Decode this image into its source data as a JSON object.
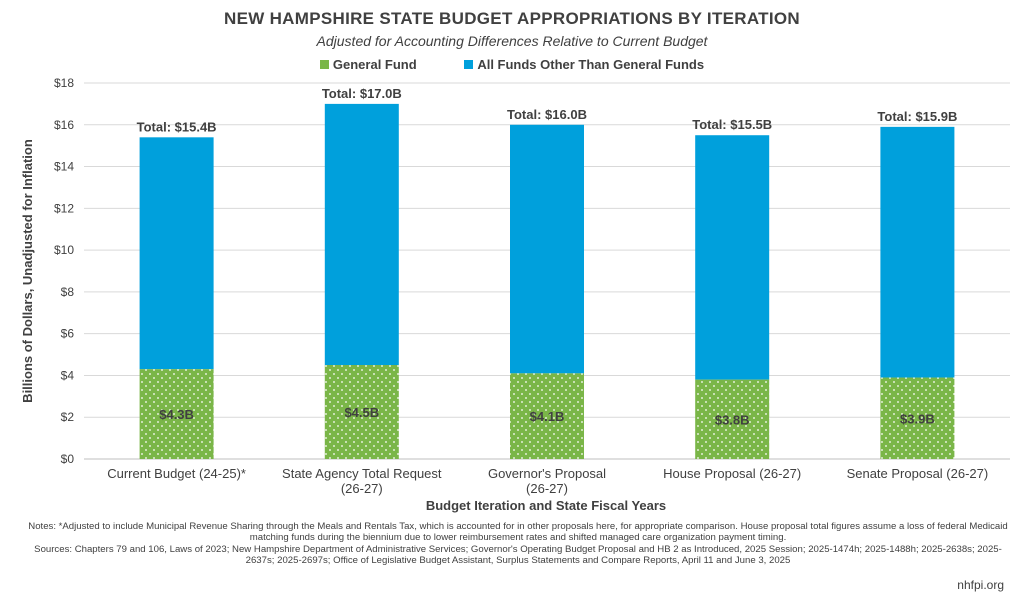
{
  "title": "NEW HAMPSHIRE STATE BUDGET APPROPRIATIONS BY ITERATION",
  "subtitle": "Adjusted for Accounting Differences Relative to Current Budget",
  "colors": {
    "general_fund": "#7ab648",
    "other_funds": "#00a0dc",
    "dots": "#ffffff",
    "grid": "#d9d9d9"
  },
  "chart_data": {
    "type": "bar",
    "stacked": true,
    "title": "NEW HAMPSHIRE STATE BUDGET APPROPRIATIONS BY ITERATION",
    "subtitle": "Adjusted for Accounting Differences Relative to Current Budget",
    "xlabel": "Budget Iteration and State Fiscal Years",
    "ylabel": "Billions of Dollars, Unadjusted for Inflation",
    "ylim": [
      0,
      18
    ],
    "yticks": [
      "$0",
      "$2",
      "$4",
      "$6",
      "$8",
      "$10",
      "$12",
      "$14",
      "$16",
      "$18"
    ],
    "grid": true,
    "legend_position": "top",
    "categories": [
      [
        "Current Budget (24-25)*"
      ],
      [
        "State Agency Total Request",
        "(26-27)"
      ],
      [
        "Governor's Proposal",
        "(26-27)"
      ],
      [
        "House Proposal (26-27)"
      ],
      [
        "Senate Proposal (26-27)"
      ]
    ],
    "series": [
      {
        "name": "General Fund",
        "values": [
          4.3,
          4.5,
          4.1,
          3.8,
          3.9
        ],
        "labels": [
          "$4.3B",
          "$4.5B",
          "$4.1B",
          "$3.8B",
          "$3.9B"
        ]
      },
      {
        "name": "All Funds Other Than General Funds",
        "values": [
          11.1,
          12.5,
          11.9,
          11.7,
          12.0
        ]
      }
    ],
    "totals": [
      15.4,
      17.0,
      16.0,
      15.5,
      15.9
    ],
    "total_labels": [
      "Total:  $15.4B",
      "Total:  $17.0B",
      "Total:  $16.0B",
      "Total:  $15.5B",
      "Total:  $15.9B"
    ]
  },
  "notes": "Notes: *Adjusted to include Municipal Revenue Sharing through the Meals and Rentals Tax, which is accounted for in other proposals here, for appropriate comparison. House proposal total figures assume a loss of federal Medicaid matching funds during the biennium due to lower reimbursement rates and shifted managed care organization payment timing.",
  "sources": "Sources: Chapters 79 and 106, Laws of 2023; New Hampshire Department of Administrative Services; Governor's Operating Budget Proposal and HB 2 as Introduced, 2025 Session; 2025-1474h; 2025-1488h; 2025-2638s; 2025-2637s; 2025-2697s; Office of Legislative Budget Assistant, Surplus Statements and Compare Reports, April 11 and June 3, 2025",
  "footer": "nhfpi.org"
}
